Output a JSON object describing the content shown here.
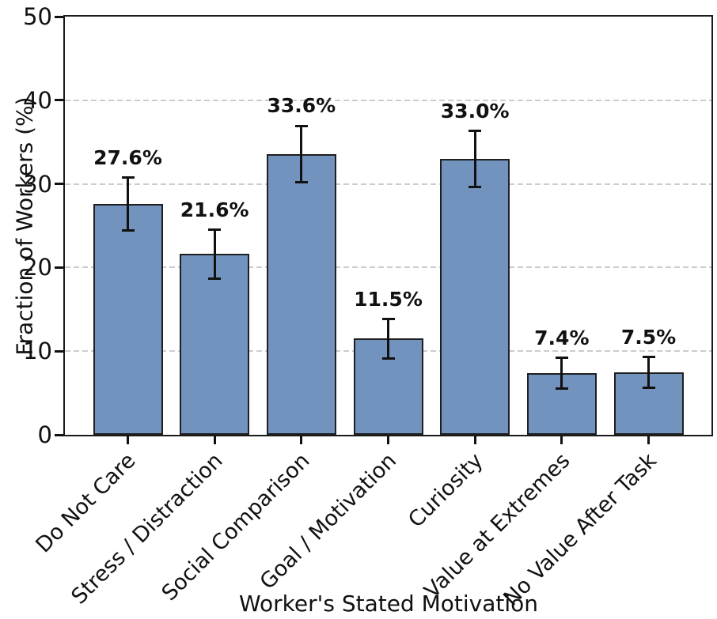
{
  "chart_data": {
    "type": "bar",
    "title": "",
    "xlabel": "Worker's Stated Motivation",
    "ylabel": "Fraction of Workers (%)",
    "categories": [
      "Do Not Care",
      "Stress / Distraction",
      "Social Comparison",
      "Goal / Motivation",
      "Curiosity",
      "Value at Extremes",
      "No Value After Task"
    ],
    "values": [
      27.6,
      21.6,
      33.6,
      11.5,
      33.0,
      7.4,
      7.5
    ],
    "errors": [
      3.3,
      3.1,
      3.5,
      2.5,
      3.5,
      2.0,
      2.0
    ],
    "value_labels": [
      "27.6%",
      "21.6%",
      "33.6%",
      "11.5%",
      "33.0%",
      "7.4%",
      "7.5%"
    ],
    "ylim": [
      0,
      50
    ],
    "yticks": [
      0,
      10,
      20,
      30,
      40,
      50
    ],
    "grid": "horizontal dashed at 10,20,30,40",
    "legend": null,
    "colors": {
      "bar_fill": "#7193BE",
      "bar_edge": "#1f1f1f",
      "error_bar": "#111111",
      "gridline": "#cccccc",
      "spine": "#1a1a1a",
      "text": "#111111",
      "background": "#ffffff"
    }
  }
}
